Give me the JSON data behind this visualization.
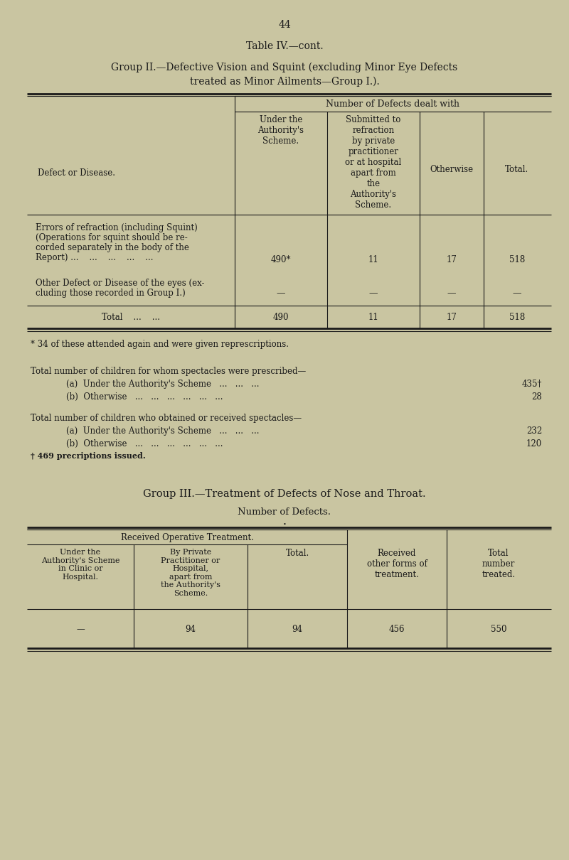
{
  "bg_color": "#c9c5a1",
  "page_number": "44",
  "table_title": "Table IV.—cont.",
  "group2_line1": "Group II.—Defective Vision and Squint (excluding Minor Eye Defects",
  "group2_line2": "treated as Minor Ailments—Group I.).",
  "col_header_main": "Number of Defects dealt with",
  "col_header1": "Under the\nAuthority's\nScheme.",
  "col_header2": "Submitted to\nrefraction\nby private\npractitioner\nor at hospital\napart from\nthe\nAuthority's\nScheme.",
  "col_header3": "Otherwise",
  "col_header4": "Total.",
  "col_label": "Defect or Disease.",
  "row1_label_l1": "Errors of refraction (including Squint)",
  "row1_label_l2": "(Operations for squint should be re-",
  "row1_label_l3": "corded separately in the body of the",
  "row1_label_l4": "Report) ...    ...    ...    ...    ...",
  "row1_v1": "490*",
  "row1_v2": "11",
  "row1_v3": "17",
  "row1_v4": "518",
  "row2_label_l1": "Other Defect or Disease of the eyes (ex-",
  "row2_label_l2": "cluding those recorded in Group I.)",
  "row2_v1": "—",
  "row2_v2": "—",
  "row2_v3": "—",
  "row2_v4": "—",
  "total_label": "Total    ...    ...",
  "total_v1": "490",
  "total_v2": "11",
  "total_v3": "17",
  "total_v4": "518",
  "footnote1": "* 34 of these attended again and were given represcriptions.",
  "sec_prescribed": "Total number of children for whom spectacles were prescribed—",
  "pres_a_label": "(a)  Under the Authority's Scheme   ...   ...   ...",
  "pres_a_val": "435†",
  "pres_b_label": "(b)  Otherwise   ...   ...   ...   ...   ...   ...",
  "pres_b_val": "28",
  "sec_obtained": "Total number of children who obtained or received spectacles—",
  "obt_a_label": "(a)  Under the Authority's Scheme   ...   ...   ...",
  "obt_a_val": "232",
  "obt_b_label": "(b)  Otherwise   ...   ...   ...   ...   ...   ...",
  "obt_b_val": "120",
  "footnote2": "† 469 precriptions issued.",
  "group3_title": "Group III.—Treatment of Defects of Nose and Throat.",
  "group3_subtitle": "Number of Defects.",
  "g3_header_span": "Received Operative Treatment.",
  "g3_ch1": "Under the\nAuthority's Scheme\nin Clinic or\nHospital.",
  "g3_ch2": "By Private\nPractitioner or\nHospital,\napart from\nthe Authority's\nScheme.",
  "g3_ch3": "Total.",
  "g3_ch4": "Received\nother forms of\ntreatment.",
  "g3_ch5": "Total\nnumber\ntreated.",
  "g3_v1": "—",
  "g3_v2": "94",
  "g3_v3": "94",
  "g3_v4": "456",
  "g3_v5": "550",
  "text_color": "#1a1a1a",
  "line_color": "#1a1a1a"
}
